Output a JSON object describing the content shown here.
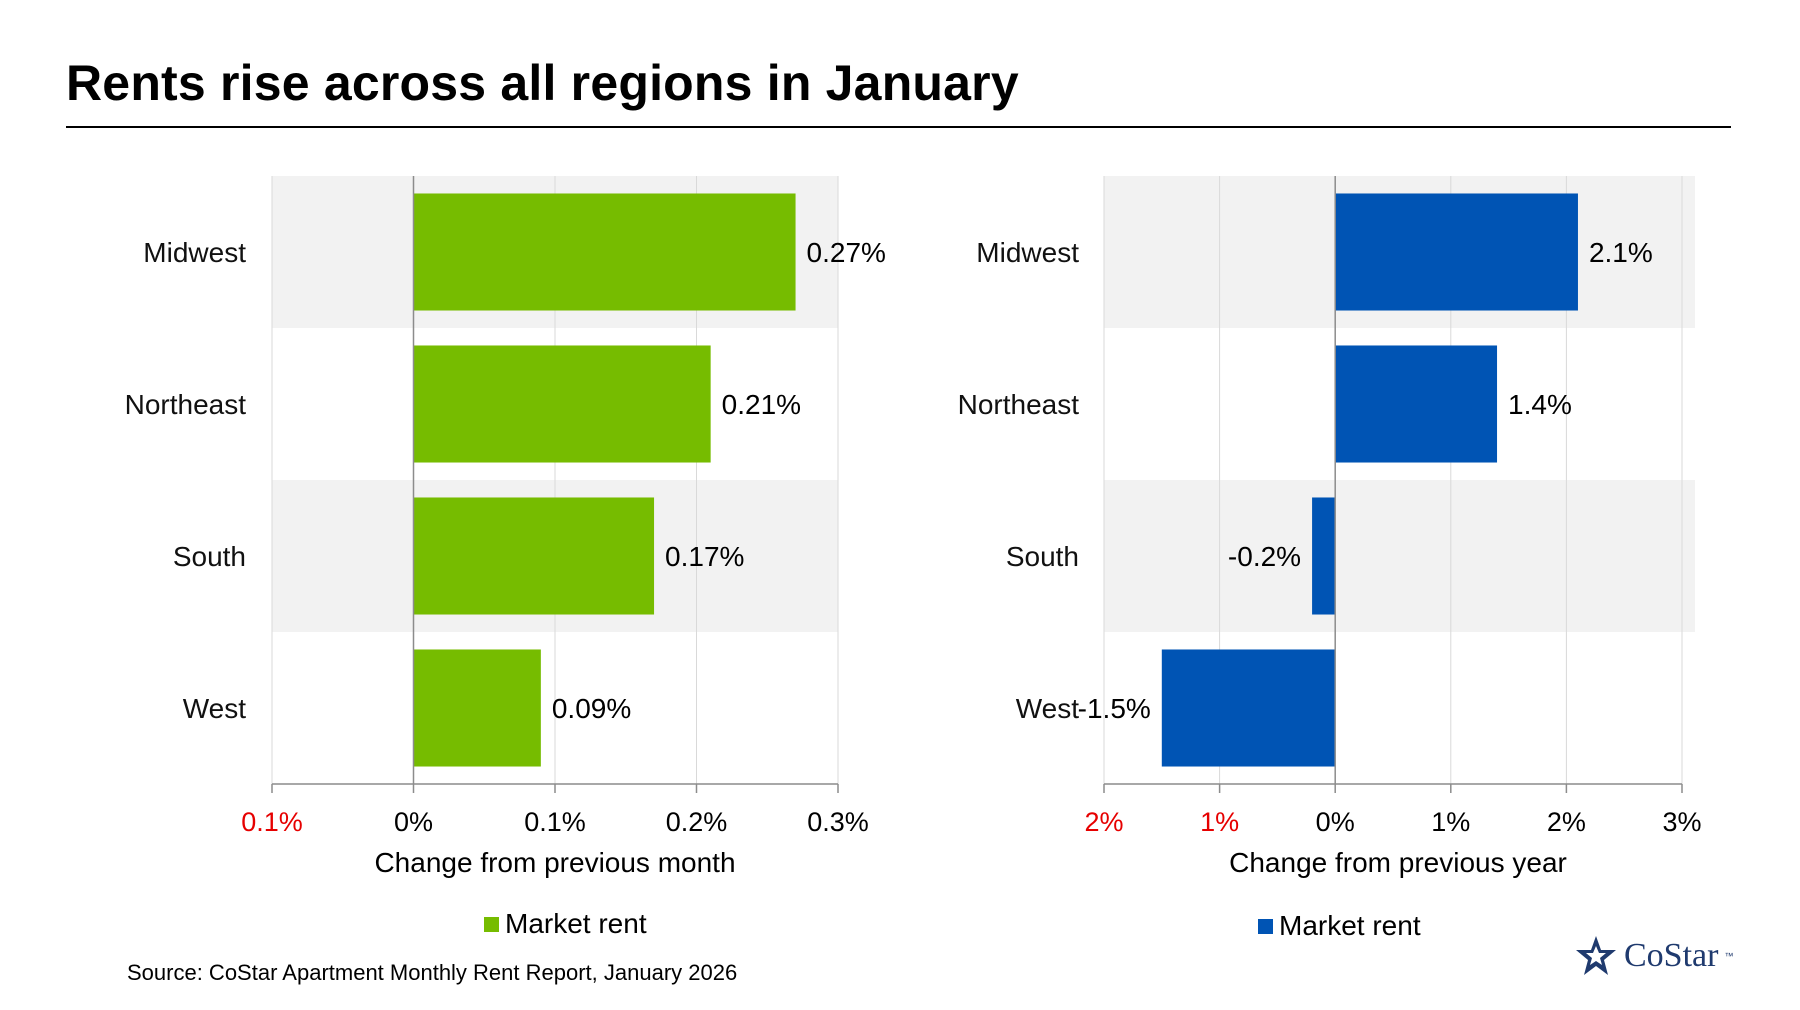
{
  "title": "Rents rise across all regions in January",
  "source": "Source: CoStar Apartment Monthly Rent Report, January 2026",
  "brand": {
    "name": "CoStar",
    "tm": "™"
  },
  "colors": {
    "green": "#76BC00",
    "blue": "#0054B4",
    "band": "#F2F2F2",
    "negative_tick": "#E60000"
  },
  "chart_data": [
    {
      "type": "bar",
      "orientation": "horizontal",
      "categories": [
        "Midwest",
        "Northeast",
        "South",
        "West"
      ],
      "series": [
        {
          "name": "Market rent",
          "values": [
            0.27,
            0.21,
            0.17,
            0.09
          ],
          "color": "#76BC00"
        }
      ],
      "value_labels": [
        "0.27%",
        "0.21%",
        "0.17%",
        "0.09%"
      ],
      "xlabel": "Change from previous month",
      "xlim": [
        -0.1,
        0.3
      ],
      "ticks": [
        -0.1,
        0,
        0.1,
        0.2,
        0.3
      ],
      "tick_labels": [
        "0.1%",
        "0%",
        "0.1%",
        "0.2%",
        "0.3%"
      ],
      "grid": true,
      "legend": "bottom"
    },
    {
      "type": "bar",
      "orientation": "horizontal",
      "categories": [
        "Midwest",
        "Northeast",
        "South",
        "West"
      ],
      "series": [
        {
          "name": "Market rent",
          "values": [
            2.1,
            1.4,
            -0.2,
            -1.5
          ],
          "color": "#0054B4"
        }
      ],
      "value_labels": [
        "2.1%",
        "1.4%",
        "-0.2%",
        "-1.5%"
      ],
      "xlabel": "Change from previous year",
      "xlim": [
        -2,
        3
      ],
      "ticks": [
        -2,
        -1,
        0,
        1,
        2,
        3
      ],
      "tick_labels": [
        "2%",
        "1%",
        "0%",
        "1%",
        "2%",
        "3%"
      ],
      "grid": true,
      "legend": "bottom"
    }
  ]
}
